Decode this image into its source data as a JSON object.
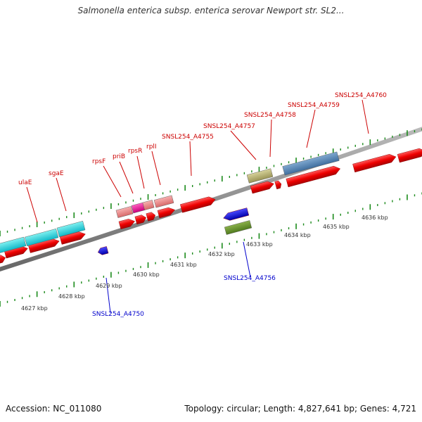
{
  "title": "Salmonella enterica subsp. enterica serovar Newport str. SL2...",
  "accession": "Accession: NC_011080",
  "topology": "Topology: circular; Length: 4,827,641 bp; Genes: 4,721",
  "colors": {
    "backbone": "#888888",
    "forward_gene": "#ff0000",
    "reverse_gene": "#0000ff",
    "forward_label": "#cc0000",
    "reverse_label": "#0000cc",
    "tick": "#1a8a1a",
    "kbp_label": "#333333"
  },
  "kbp_ticks": [
    "4627 kbp",
    "4628 kbp",
    "4629 kbp",
    "4630 kbp",
    "4631 kbp",
    "4632 kbp",
    "4633 kbp",
    "4634 kbp",
    "4635 kbp",
    "4636 kbp"
  ],
  "forward_labels": [
    "ulaE",
    "sgaE",
    "rpsF",
    "priB",
    "rpsR",
    "rplI",
    "SNSL254_A4755",
    "SNSL254_A4757",
    "SNSL254_A4758",
    "SNSL254_A4759",
    "SNSL254_A4760"
  ],
  "reverse_labels": [
    "SNSL254_A4750",
    "SNSL254_A4756"
  ]
}
